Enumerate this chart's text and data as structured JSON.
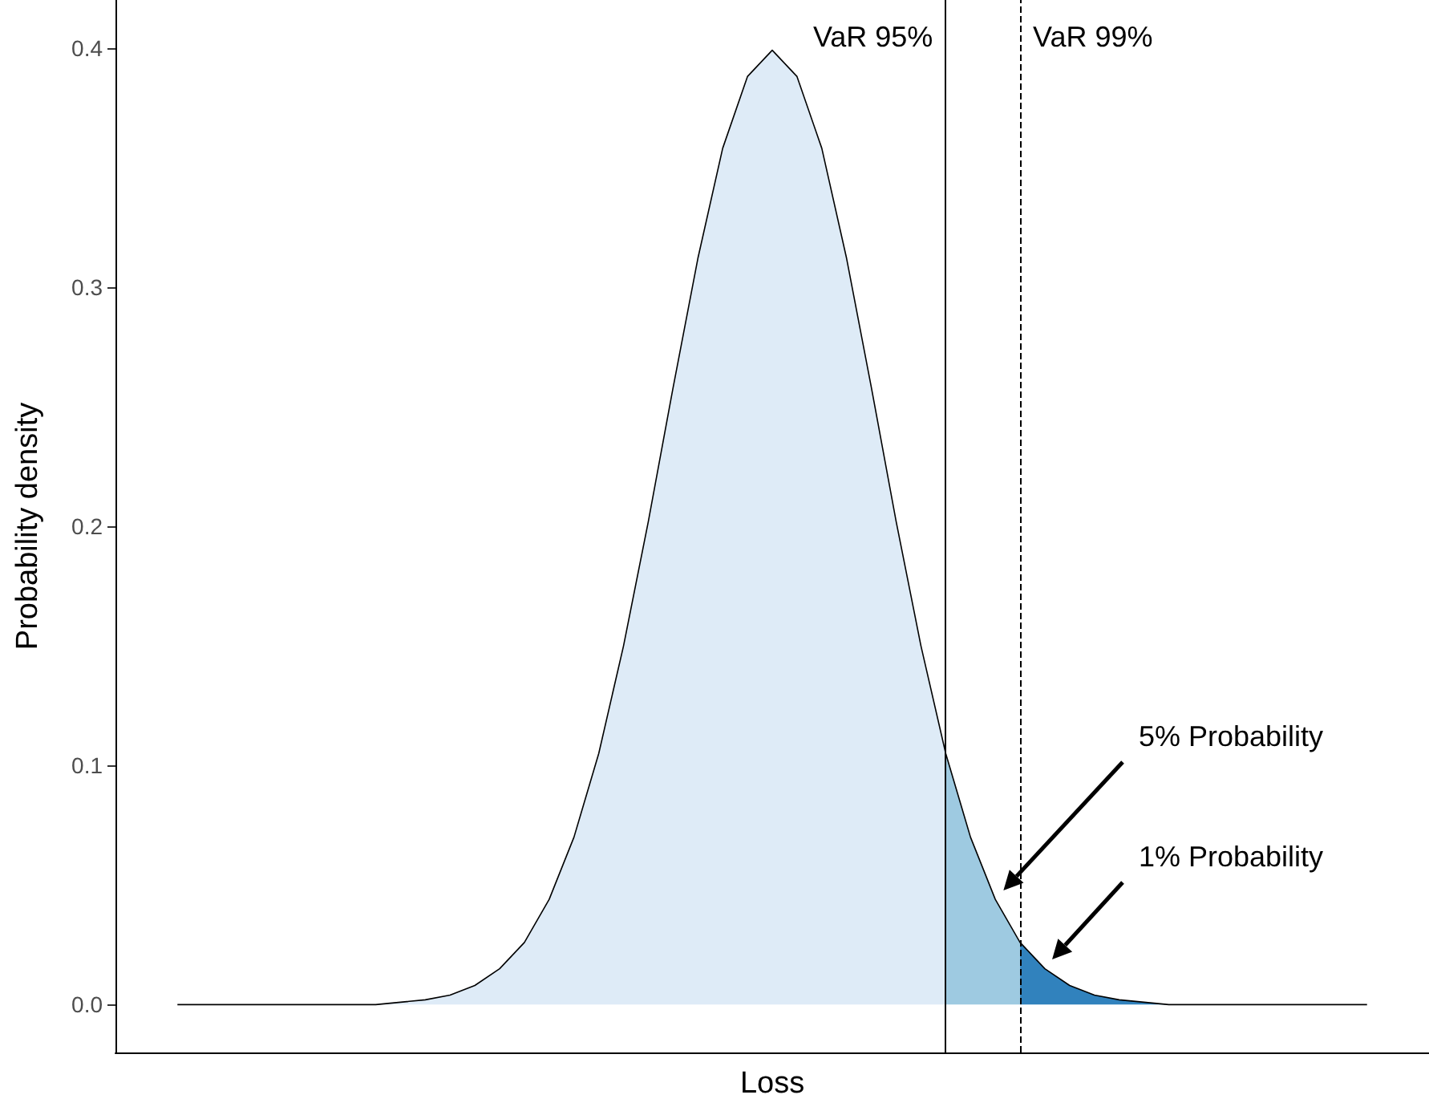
{
  "chart_data": {
    "type": "area",
    "xlabel": "Loss",
    "ylabel": "Probability density",
    "categories": [
      null,
      null,
      null,
      null,
      null,
      null,
      null,
      null,
      null,
      null,
      null,
      null,
      null,
      null,
      null,
      null,
      null,
      null,
      null,
      null,
      null,
      null,
      null,
      null,
      null,
      null,
      null,
      null,
      null,
      null,
      null,
      null,
      null,
      null,
      null,
      null,
      null,
      null,
      null,
      null,
      null,
      null,
      null,
      null,
      null,
      null,
      null,
      null,
      null,
      null,
      null,
      null,
      null
    ],
    "series": [
      {
        "color": "#deebf7",
        "values": [
          null,
          null,
          0,
          0,
          0,
          0,
          0,
          0,
          0,
          0,
          0,
          0.001,
          0.002,
          0.004,
          0.008,
          0.015,
          0.026,
          0.044,
          0.07,
          0.105,
          0.15,
          0.202,
          0.258,
          0.312,
          0.358,
          0.388,
          0.399,
          0.388,
          0.358,
          0.312,
          0.258,
          0.202,
          0.15,
          0.105,
          null,
          null,
          null,
          null,
          null,
          null,
          null,
          null,
          null,
          null,
          null,
          null,
          null,
          null,
          null,
          null,
          null,
          null,
          null
        ]
      },
      {
        "color": "#9ecae1",
        "values": [
          null,
          null,
          null,
          null,
          null,
          null,
          null,
          null,
          null,
          null,
          null,
          null,
          null,
          null,
          null,
          null,
          null,
          null,
          null,
          null,
          null,
          null,
          null,
          null,
          null,
          null,
          null,
          null,
          null,
          null,
          null,
          null,
          null,
          0.105,
          0.07,
          0.044,
          0.026,
          null,
          null,
          null,
          null,
          null,
          null,
          null,
          null,
          null,
          null,
          null,
          null,
          null,
          null,
          null,
          null
        ]
      },
      {
        "color": "#3182bd",
        "values": [
          null,
          null,
          null,
          null,
          null,
          null,
          null,
          null,
          null,
          null,
          null,
          null,
          null,
          null,
          null,
          null,
          null,
          null,
          null,
          null,
          null,
          null,
          null,
          null,
          null,
          null,
          null,
          null,
          null,
          null,
          null,
          null,
          null,
          null,
          null,
          null,
          0.026,
          0.015,
          0.008,
          0.004,
          0.002,
          0.001,
          0,
          0,
          0,
          0,
          0,
          0,
          0,
          0,
          0,
          null,
          null
        ]
      },
      {
        "type": "line",
        "color": "#000000",
        "values": [
          null,
          null,
          0,
          0,
          0,
          0,
          0,
          0,
          0,
          0,
          0,
          0.001,
          0.002,
          0.004,
          0.008,
          0.015,
          0.026,
          0.044,
          0.07,
          0.105,
          0.15,
          0.202,
          0.258,
          0.312,
          0.358,
          0.388,
          0.399,
          0.388,
          0.358,
          0.312,
          0.258,
          0.202,
          0.15,
          0.105,
          0.07,
          0.044,
          0.026,
          0.015,
          0.008,
          0.004,
          0.002,
          0.001,
          0,
          0,
          0,
          0,
          0,
          0,
          0,
          0,
          0,
          null,
          null
        ]
      }
    ],
    "ylim": [
      -0.02,
      0.42
    ],
    "yticks": [
      {
        "value": 0,
        "label": "0.0"
      },
      {
        "value": 0.1,
        "label": "0.1"
      },
      {
        "value": 0.2,
        "label": "0.2"
      },
      {
        "value": 0.3,
        "label": "0.3"
      },
      {
        "value": 0.4,
        "label": "0.4"
      }
    ],
    "tick_labels": "y",
    "grid": false,
    "annotations": [
      "VaR 95%",
      "VaR 99%",
      "5% Probability",
      "1% Probability"
    ]
  }
}
